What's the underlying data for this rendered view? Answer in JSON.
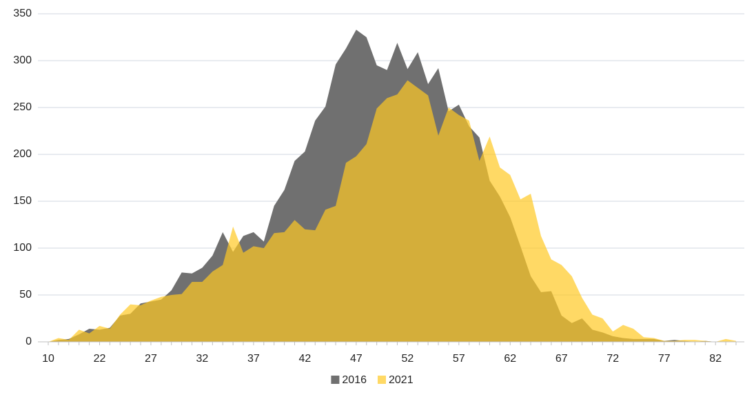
{
  "chart_data": {
    "type": "area",
    "categories": [
      10,
      null,
      null,
      null,
      null,
      22,
      null,
      null,
      null,
      null,
      27,
      null,
      null,
      null,
      null,
      32,
      null,
      null,
      null,
      null,
      37,
      null,
      null,
      null,
      null,
      42,
      null,
      null,
      null,
      null,
      47,
      null,
      null,
      null,
      null,
      52,
      null,
      null,
      null,
      null,
      57,
      null,
      null,
      null,
      null,
      62,
      null,
      null,
      null,
      null,
      67,
      null,
      null,
      null,
      null,
      72,
      null,
      null,
      null,
      null,
      77,
      null,
      null,
      null,
      null,
      82,
      null,
      null
    ],
    "series": [
      {
        "name": "2016",
        "color": "#707070",
        "values": [
          0,
          2,
          3,
          8,
          14,
          13,
          15,
          28,
          30,
          41,
          43,
          45,
          55,
          74,
          73,
          79,
          92,
          117,
          96,
          113,
          117,
          107,
          145,
          162,
          193,
          203,
          236,
          251,
          296,
          313,
          333,
          325,
          295,
          290,
          319,
          291,
          309,
          275,
          292,
          246,
          253,
          230,
          218,
          172,
          155,
          133,
          102,
          70,
          53,
          54,
          28,
          20,
          25,
          13,
          10,
          6,
          4,
          3,
          3,
          3,
          1,
          2,
          1,
          0,
          1,
          0,
          0,
          0
        ]
      },
      {
        "name": "2021",
        "color": "#FFC924",
        "values": [
          0,
          4,
          2,
          13,
          9,
          17,
          14,
          29,
          40,
          39,
          44,
          48,
          50,
          51,
          64,
          64,
          75,
          82,
          123,
          95,
          102,
          100,
          116,
          117,
          130,
          120,
          119,
          141,
          145,
          191,
          198,
          211,
          249,
          260,
          264,
          279,
          271,
          263,
          220,
          250,
          242,
          236,
          193,
          219,
          186,
          178,
          152,
          158,
          113,
          88,
          82,
          70,
          47,
          29,
          25,
          11,
          18,
          14,
          5,
          4,
          1,
          1,
          2,
          2,
          1,
          0,
          3,
          1
        ]
      }
    ],
    "ylim": [
      0,
      350
    ],
    "yticks": [
      0,
      50,
      100,
      150,
      200,
      250,
      300,
      350
    ],
    "grid": true,
    "legend": "bottom"
  }
}
